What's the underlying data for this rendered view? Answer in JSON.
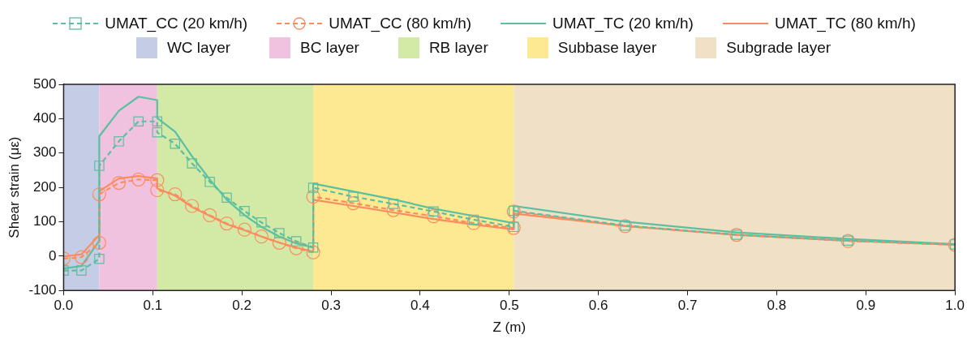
{
  "chart_data": {
    "type": "line",
    "xlabel": "Z (m)",
    "ylabel": "Shear strain (με)",
    "x": [
      0,
      0.02,
      0.04,
      0.04,
      0.062,
      0.084,
      0.105,
      0.105,
      0.125,
      0.144,
      0.164,
      0.183,
      0.203,
      0.222,
      0.242,
      0.261,
      0.28,
      0.28,
      0.325,
      0.37,
      0.415,
      0.46,
      0.505,
      0.505,
      0.63,
      0.755,
      0.88,
      1.0
    ],
    "series": [
      {
        "name": "UMAT_CC (20 km/h)",
        "color": "#5bbfa1",
        "marker": "square",
        "line_style": "dashed",
        "values": [
          -42,
          -42,
          -8,
          263,
          334,
          392,
          392,
          360,
          327,
          270,
          216,
          170,
          131,
          98,
          67,
          43,
          25,
          199,
          173,
          152,
          130,
          106,
          85,
          132,
          89,
          62,
          45,
          34
        ]
      },
      {
        "name": "UMAT_CC (80 km/h)",
        "color": "#fb8c5f",
        "marker": "circle",
        "line_style": "dashed",
        "values": [
          -7,
          -3,
          39,
          180,
          213,
          223,
          221,
          192,
          180,
          146,
          119,
          95,
          77,
          57,
          39,
          23,
          11,
          173,
          154,
          134,
          116,
          96,
          82,
          130,
          87,
          62,
          44,
          33
        ]
      },
      {
        "name": "UMAT_TC (20 km/h)",
        "color": "#5bbfa1",
        "marker": "none",
        "line_style": "solid",
        "values": [
          -36,
          -29,
          45,
          349,
          423,
          464,
          454,
          402,
          362,
          291,
          223,
          164,
          119,
          85,
          57,
          37,
          25,
          211,
          188,
          165,
          138,
          117,
          96,
          146,
          100,
          69,
          50,
          35
        ]
      },
      {
        "name": "UMAT_TC (80 km/h)",
        "color": "#fb8c5f",
        "marker": "none",
        "line_style": "solid",
        "values": [
          -1,
          5,
          61,
          189,
          226,
          233,
          226,
          197,
          176,
          143,
          117,
          93,
          75,
          57,
          39,
          25,
          13,
          164,
          146,
          127,
          108,
          92,
          78,
          124,
          88,
          62,
          45,
          33
        ]
      }
    ],
    "bands": [
      {
        "axis": "x",
        "from": 0,
        "to": 0.04,
        "label": "WC layer",
        "color": "#c5cde6"
      },
      {
        "axis": "x",
        "from": 0.04,
        "to": 0.105,
        "label": "BC layer",
        "color": "#f0c2e0"
      },
      {
        "axis": "x",
        "from": 0.105,
        "to": 0.28,
        "label": "RB layer",
        "color": "#d3e9a6"
      },
      {
        "axis": "x",
        "from": 0.28,
        "to": 0.505,
        "label": "Subbase layer",
        "color": "#fde992"
      },
      {
        "axis": "x",
        "from": 0.505,
        "to": 1.0,
        "label": "Subgrade layer",
        "color": "#f0e0c6"
      }
    ],
    "xlim": [
      0,
      1.0
    ],
    "xticks": [
      {
        "value": 0,
        "label": "0.0"
      },
      {
        "value": 0.1,
        "label": "0.1"
      },
      {
        "value": 0.2,
        "label": "0.2"
      },
      {
        "value": 0.3,
        "label": "0.3"
      },
      {
        "value": 0.4,
        "label": "0.4"
      },
      {
        "value": 0.5,
        "label": "0.5"
      },
      {
        "value": 0.6,
        "label": "0.6"
      },
      {
        "value": 0.7,
        "label": "0.7"
      },
      {
        "value": 0.8,
        "label": "0.8"
      },
      {
        "value": 0.9,
        "label": "0.9"
      },
      {
        "value": 1.0,
        "label": "1.0"
      }
    ],
    "ylim": [
      -100,
      500
    ],
    "yticks": [
      -100,
      0,
      100,
      200,
      300,
      400,
      500
    ],
    "grid": false,
    "legend": "top"
  }
}
